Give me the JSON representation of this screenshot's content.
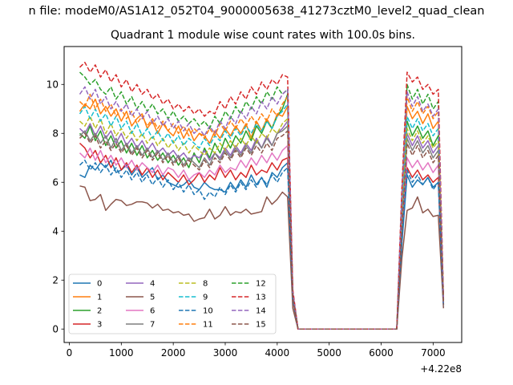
{
  "figure": {
    "suptitle": "n file: modeM0/AS1A12_052T04_9000005638_41273cztM0_level2_quad_clean"
  },
  "chart_data": {
    "type": "line",
    "title": "Quadrant 1 module wise count rates with 100.0s bins.",
    "xlabel": "",
    "ylabel": "",
    "x_offset_label": "+4.22e8",
    "xlim": [
      -100,
      7550
    ],
    "ylim": [
      -0.55,
      11.55
    ],
    "xticks": [
      0,
      1000,
      2000,
      3000,
      4000,
      5000,
      6000,
      7000
    ],
    "yticks": [
      0,
      2,
      4,
      6,
      8,
      10
    ],
    "grid": false,
    "legend": {
      "placement": "lower-left",
      "columns": 4
    },
    "x": [
      200,
      300,
      400,
      500,
      600,
      700,
      800,
      900,
      1000,
      1100,
      1200,
      1300,
      1400,
      1500,
      1600,
      1700,
      1800,
      1900,
      2000,
      2100,
      2200,
      2300,
      2400,
      2500,
      2600,
      2700,
      2800,
      2900,
      3000,
      3100,
      3200,
      3300,
      3400,
      3500,
      3600,
      3700,
      3800,
      3900,
      4000,
      4100,
      4200,
      4300,
      4400,
      4500,
      4600,
      4700,
      4800,
      4900,
      5000,
      5100,
      5200,
      5300,
      5400,
      5500,
      5600,
      5700,
      5800,
      5900,
      6000,
      6100,
      6200,
      6300,
      6400,
      6500,
      6600,
      6700,
      6800,
      6900,
      7000,
      7100,
      7200
    ],
    "series": [
      {
        "name": "0",
        "color": "#1f77b4",
        "dashed": false,
        "values": [
          6.3,
          6.2,
          6.7,
          6.5,
          6.8,
          6.6,
          6.9,
          6.4,
          6.5,
          6.7,
          6.3,
          6.6,
          6.2,
          6.4,
          6.6,
          6.1,
          6.3,
          6.0,
          5.9,
          5.8,
          5.9,
          6.1,
          5.8,
          5.7,
          6.0,
          5.8,
          5.7,
          5.7,
          5.6,
          6.0,
          5.7,
          6.1,
          5.8,
          6.3,
          5.9,
          6.2,
          5.8,
          6.4,
          6.2,
          6.6,
          6.8,
          1.3,
          0,
          0,
          0,
          0,
          0,
          0,
          0,
          0,
          0,
          0,
          0,
          0,
          0,
          0,
          0,
          0,
          0,
          0,
          0,
          0,
          3.5,
          6.3,
          5.8,
          6.1,
          5.9,
          6.2,
          5.8,
          6.0,
          1.0
        ]
      },
      {
        "name": "1",
        "color": "#ff7f0e",
        "dashed": false,
        "values": [
          8.9,
          9.2,
          9.0,
          9.4,
          8.8,
          9.1,
          8.7,
          9.0,
          8.5,
          8.9,
          8.3,
          8.6,
          8.8,
          8.2,
          8.5,
          8.0,
          8.4,
          8.1,
          7.9,
          8.3,
          7.8,
          8.2,
          7.7,
          8.0,
          7.9,
          7.6,
          8.1,
          7.8,
          8.2,
          7.9,
          8.3,
          8.0,
          8.4,
          7.8,
          8.5,
          8.1,
          8.6,
          8.2,
          8.8,
          8.7,
          9.1,
          1.4,
          0,
          0,
          0,
          0,
          0,
          0,
          0,
          0,
          0,
          0,
          0,
          0,
          0,
          0,
          0,
          0,
          0,
          0,
          0,
          0,
          5.0,
          9.1,
          8.6,
          8.9,
          8.4,
          8.8,
          8.2,
          8.5,
          1.2
        ]
      },
      {
        "name": "2",
        "color": "#2ca02c",
        "dashed": false,
        "values": [
          8.0,
          7.8,
          8.3,
          7.7,
          8.1,
          7.5,
          7.9,
          7.4,
          7.7,
          7.2,
          7.6,
          7.1,
          7.5,
          7.0,
          7.3,
          6.9,
          7.2,
          6.8,
          7.1,
          6.7,
          7.0,
          6.6,
          7.2,
          6.8,
          7.4,
          7.0,
          7.6,
          7.2,
          7.8,
          7.4,
          7.9,
          7.6,
          8.1,
          7.7,
          8.3,
          8.0,
          8.5,
          8.2,
          8.7,
          9.0,
          9.6,
          1.3,
          0,
          0,
          0,
          0,
          0,
          0,
          0,
          0,
          0,
          0,
          0,
          0,
          0,
          0,
          0,
          0,
          0,
          0,
          0,
          0,
          4.5,
          8.5,
          7.9,
          8.3,
          7.8,
          8.1,
          7.5,
          7.9,
          1.1
        ]
      },
      {
        "name": "3",
        "color": "#d62728",
        "dashed": false,
        "values": [
          7.6,
          7.4,
          7.0,
          7.3,
          6.8,
          7.1,
          6.6,
          7.0,
          6.5,
          6.8,
          6.4,
          6.7,
          6.3,
          6.6,
          6.2,
          6.5,
          6.1,
          6.4,
          6.2,
          6.0,
          6.3,
          5.9,
          6.1,
          6.4,
          6.0,
          6.3,
          6.1,
          6.6,
          6.2,
          6.5,
          6.1,
          6.4,
          6.2,
          6.7,
          6.3,
          6.5,
          6.4,
          6.8,
          6.5,
          6.9,
          7.0,
          1.2,
          0,
          0,
          0,
          0,
          0,
          0,
          0,
          0,
          0,
          0,
          0,
          0,
          0,
          0,
          0,
          0,
          0,
          0,
          0,
          0,
          4.0,
          6.6,
          6.2,
          6.5,
          6.1,
          6.3,
          6.0,
          6.2,
          1.0
        ]
      },
      {
        "name": "4",
        "color": "#9467bd",
        "dashed": false,
        "values": [
          8.2,
          8.0,
          8.4,
          7.9,
          8.3,
          7.8,
          8.1,
          7.6,
          8.0,
          7.5,
          7.8,
          7.4,
          7.7,
          7.3,
          7.6,
          7.2,
          7.4,
          7.1,
          7.3,
          7.0,
          7.2,
          6.9,
          7.1,
          7.0,
          7.3,
          6.9,
          7.2,
          7.0,
          7.4,
          7.1,
          7.5,
          7.2,
          7.6,
          7.3,
          7.8,
          7.4,
          7.9,
          7.5,
          8.0,
          8.2,
          8.5,
          1.3,
          0,
          0,
          0,
          0,
          0,
          0,
          0,
          0,
          0,
          0,
          0,
          0,
          0,
          0,
          0,
          0,
          0,
          0,
          0,
          0,
          4.3,
          8.0,
          7.5,
          7.9,
          7.4,
          7.7,
          7.2,
          7.5,
          1.0
        ]
      },
      {
        "name": "5",
        "color": "#8c564b",
        "dashed": false,
        "values": [
          5.85,
          5.8,
          5.25,
          5.3,
          5.5,
          4.85,
          5.1,
          5.3,
          5.25,
          5.05,
          5.1,
          5.2,
          5.2,
          5.15,
          4.95,
          5.1,
          4.85,
          4.9,
          4.75,
          4.8,
          4.65,
          4.7,
          4.4,
          4.5,
          4.55,
          4.9,
          4.5,
          4.65,
          5.0,
          4.65,
          4.8,
          4.75,
          4.9,
          4.7,
          4.75,
          4.8,
          5.4,
          5.1,
          5.3,
          5.6,
          5.4,
          0.85,
          0,
          0,
          0,
          0,
          0,
          0,
          0,
          0,
          0,
          0,
          0,
          0,
          0,
          0,
          0,
          0,
          0,
          0,
          0,
          0,
          2.9,
          4.85,
          4.95,
          5.4,
          4.75,
          4.9,
          4.6,
          4.65,
          0.85
        ]
      },
      {
        "name": "6",
        "color": "#e377c2",
        "dashed": false,
        "values": [
          7.2,
          7.0,
          7.4,
          6.9,
          7.3,
          6.8,
          7.1,
          6.7,
          7.0,
          6.6,
          6.9,
          6.5,
          6.8,
          6.6,
          6.4,
          6.7,
          6.3,
          6.6,
          6.5,
          6.2,
          6.5,
          6.1,
          6.3,
          6.4,
          6.2,
          6.5,
          6.3,
          6.7,
          6.4,
          6.6,
          6.5,
          6.9,
          6.6,
          7.0,
          6.7,
          7.1,
          6.8,
          7.2,
          6.9,
          7.3,
          7.5,
          1.3,
          0,
          0,
          0,
          0,
          0,
          0,
          0,
          0,
          0,
          0,
          0,
          0,
          0,
          0,
          0,
          0,
          0,
          0,
          0,
          0,
          4.1,
          7.0,
          6.6,
          6.9,
          6.5,
          6.8,
          6.4,
          6.7,
          1.0
        ]
      },
      {
        "name": "7",
        "color": "#7f7f7f",
        "dashed": false,
        "values": [
          7.9,
          8.1,
          7.7,
          8.0,
          7.6,
          7.9,
          7.4,
          7.8,
          7.3,
          7.6,
          7.2,
          7.5,
          7.1,
          7.4,
          7.0,
          7.3,
          6.9,
          7.2,
          6.8,
          7.1,
          6.7,
          7.0,
          6.8,
          6.6,
          7.0,
          6.7,
          7.2,
          6.9,
          7.3,
          7.0,
          7.4,
          7.1,
          7.5,
          7.2,
          7.7,
          7.4,
          7.8,
          7.5,
          8.0,
          8.1,
          8.3,
          1.3,
          0,
          0,
          0,
          0,
          0,
          0,
          0,
          0,
          0,
          0,
          0,
          0,
          0,
          0,
          0,
          0,
          0,
          0,
          0,
          0,
          4.4,
          7.8,
          7.3,
          7.7,
          7.2,
          7.5,
          7.0,
          7.3,
          1.0
        ]
      },
      {
        "name": "8",
        "color": "#bcbd22",
        "dashed": true,
        "values": [
          8.5,
          8.3,
          8.7,
          8.2,
          8.6,
          8.0,
          8.4,
          7.9,
          8.2,
          7.8,
          8.1,
          7.7,
          8.0,
          7.6,
          7.9,
          7.5,
          7.8,
          7.4,
          7.7,
          7.3,
          7.6,
          7.2,
          7.5,
          7.3,
          7.1,
          7.4,
          7.2,
          7.6,
          7.3,
          7.7,
          7.4,
          7.8,
          7.5,
          7.9,
          7.6,
          8.0,
          7.8,
          8.2,
          8.0,
          8.4,
          8.6,
          1.4,
          0,
          0,
          0,
          0,
          0,
          0,
          0,
          0,
          0,
          0,
          0,
          0,
          0,
          0,
          0,
          0,
          0,
          0,
          0,
          0,
          4.6,
          8.2,
          7.7,
          8.1,
          7.6,
          7.9,
          7.4,
          7.7,
          1.0
        ]
      },
      {
        "name": "9",
        "color": "#17becf",
        "dashed": true,
        "values": [
          8.8,
          9.1,
          8.6,
          9.0,
          8.5,
          8.8,
          8.3,
          8.7,
          8.2,
          8.5,
          8.0,
          8.4,
          7.9,
          8.2,
          7.8,
          8.1,
          7.7,
          8.0,
          7.6,
          7.9,
          7.5,
          7.8,
          7.6,
          7.4,
          7.8,
          7.5,
          7.9,
          7.7,
          8.1,
          7.8,
          8.2,
          7.9,
          8.3,
          8.0,
          8.4,
          8.1,
          8.5,
          8.2,
          8.7,
          8.9,
          9.2,
          1.4,
          0,
          0,
          0,
          0,
          0,
          0,
          0,
          0,
          0,
          0,
          0,
          0,
          0,
          0,
          0,
          0,
          0,
          0,
          0,
          0,
          4.8,
          8.7,
          8.2,
          8.6,
          8.1,
          8.4,
          7.9,
          8.2,
          1.1
        ]
      },
      {
        "name": "10",
        "color": "#1f77b4",
        "dashed": true,
        "values": [
          6.7,
          6.9,
          6.5,
          6.8,
          6.4,
          6.7,
          6.3,
          6.6,
          6.2,
          6.5,
          6.1,
          6.4,
          6.0,
          6.3,
          5.9,
          6.2,
          5.8,
          6.1,
          5.7,
          6.0,
          5.6,
          5.9,
          5.5,
          5.7,
          5.3,
          5.6,
          5.4,
          5.8,
          5.5,
          5.9,
          5.6,
          6.0,
          5.7,
          6.1,
          5.8,
          6.2,
          5.9,
          6.3,
          6.0,
          6.4,
          6.6,
          1.2,
          0,
          0,
          0,
          0,
          0,
          0,
          0,
          0,
          0,
          0,
          0,
          0,
          0,
          0,
          0,
          0,
          0,
          0,
          0,
          0,
          3.7,
          6.5,
          6.0,
          6.3,
          5.9,
          6.2,
          5.7,
          6.0,
          0.9
        ]
      },
      {
        "name": "11",
        "color": "#ff7f0e",
        "dashed": true,
        "values": [
          9.3,
          9.1,
          9.6,
          9.0,
          9.4,
          8.9,
          9.2,
          8.7,
          9.0,
          8.6,
          8.9,
          8.4,
          8.7,
          8.3,
          8.6,
          8.2,
          8.5,
          8.1,
          8.4,
          8.0,
          8.3,
          7.9,
          8.2,
          8.0,
          7.8,
          8.2,
          7.9,
          8.4,
          8.1,
          8.5,
          8.2,
          8.6,
          8.3,
          8.7,
          8.4,
          8.8,
          8.5,
          9.0,
          8.7,
          9.2,
          9.5,
          1.5,
          0,
          0,
          0,
          0,
          0,
          0,
          0,
          0,
          0,
          0,
          0,
          0,
          0,
          0,
          0,
          0,
          0,
          0,
          0,
          0,
          5.2,
          9.5,
          8.9,
          9.3,
          8.8,
          9.1,
          8.6,
          8.9,
          1.1
        ]
      },
      {
        "name": "12",
        "color": "#2ca02c",
        "dashed": true,
        "values": [
          10.5,
          10.3,
          10.0,
          10.2,
          9.8,
          9.6,
          9.9,
          9.4,
          9.7,
          9.2,
          9.5,
          9.0,
          9.3,
          8.9,
          9.2,
          8.8,
          9.0,
          8.6,
          8.9,
          8.5,
          8.7,
          8.4,
          8.6,
          8.3,
          8.5,
          8.2,
          8.7,
          8.4,
          8.9,
          8.6,
          9.1,
          8.8,
          9.3,
          9.0,
          9.5,
          9.2,
          9.7,
          9.4,
          9.9,
          9.6,
          9.8,
          1.5,
          0,
          0,
          0,
          0,
          0,
          0,
          0,
          0,
          0,
          0,
          0,
          0,
          0,
          0,
          0,
          0,
          0,
          0,
          0,
          0,
          5.5,
          10.0,
          9.4,
          9.8,
          9.2,
          9.6,
          9.0,
          9.3,
          1.2
        ]
      },
      {
        "name": "13",
        "color": "#d62728",
        "dashed": true,
        "values": [
          10.7,
          10.9,
          10.5,
          10.8,
          10.3,
          10.6,
          10.1,
          10.4,
          9.9,
          10.2,
          9.7,
          10.0,
          9.6,
          9.8,
          9.4,
          9.6,
          9.2,
          9.4,
          9.0,
          9.2,
          8.9,
          9.1,
          8.8,
          9.0,
          8.7,
          8.9,
          8.8,
          9.3,
          9.0,
          9.5,
          9.2,
          9.7,
          9.4,
          9.9,
          9.6,
          10.1,
          9.8,
          10.2,
          10.0,
          10.4,
          10.3,
          1.6,
          0,
          0,
          0,
          0,
          0,
          0,
          0,
          0,
          0,
          0,
          0,
          0,
          0,
          0,
          0,
          0,
          0,
          0,
          0,
          0,
          5.8,
          10.5,
          10.1,
          10.3,
          9.8,
          10.0,
          9.6,
          9.8,
          1.2
        ]
      },
      {
        "name": "14",
        "color": "#9467bd",
        "dashed": true,
        "values": [
          9.6,
          9.9,
          9.4,
          9.8,
          9.2,
          9.5,
          9.0,
          9.3,
          8.9,
          9.2,
          8.7,
          9.0,
          8.6,
          8.9,
          8.4,
          8.7,
          8.3,
          8.6,
          8.2,
          8.5,
          8.1,
          8.4,
          8.0,
          8.2,
          7.9,
          8.3,
          8.0,
          8.5,
          8.2,
          8.7,
          8.4,
          8.9,
          8.6,
          9.1,
          8.8,
          9.3,
          9.0,
          9.5,
          9.2,
          9.6,
          9.8,
          1.5,
          0,
          0,
          0,
          0,
          0,
          0,
          0,
          0,
          0,
          0,
          0,
          0,
          0,
          0,
          0,
          0,
          0,
          0,
          0,
          0,
          5.4,
          9.7,
          9.1,
          9.5,
          8.9,
          9.2,
          8.7,
          9.0,
          1.1
        ]
      },
      {
        "name": "15",
        "color": "#8c564b",
        "dashed": true,
        "values": [
          7.8,
          8.0,
          7.6,
          7.9,
          7.4,
          7.7,
          7.3,
          7.6,
          7.2,
          7.5,
          7.1,
          7.4,
          7.0,
          7.3,
          6.9,
          7.2,
          6.8,
          7.1,
          6.7,
          7.0,
          6.6,
          6.9,
          6.7,
          6.5,
          6.9,
          6.6,
          7.0,
          6.8,
          7.2,
          6.9,
          7.3,
          7.0,
          7.4,
          7.1,
          7.5,
          7.2,
          7.6,
          7.3,
          7.8,
          7.9,
          8.1,
          1.3,
          0,
          0,
          0,
          0,
          0,
          0,
          0,
          0,
          0,
          0,
          0,
          0,
          0,
          0,
          0,
          0,
          0,
          0,
          0,
          0,
          4.2,
          7.6,
          7.1,
          7.5,
          7.0,
          7.3,
          6.8,
          7.1,
          1.0
        ]
      }
    ]
  }
}
